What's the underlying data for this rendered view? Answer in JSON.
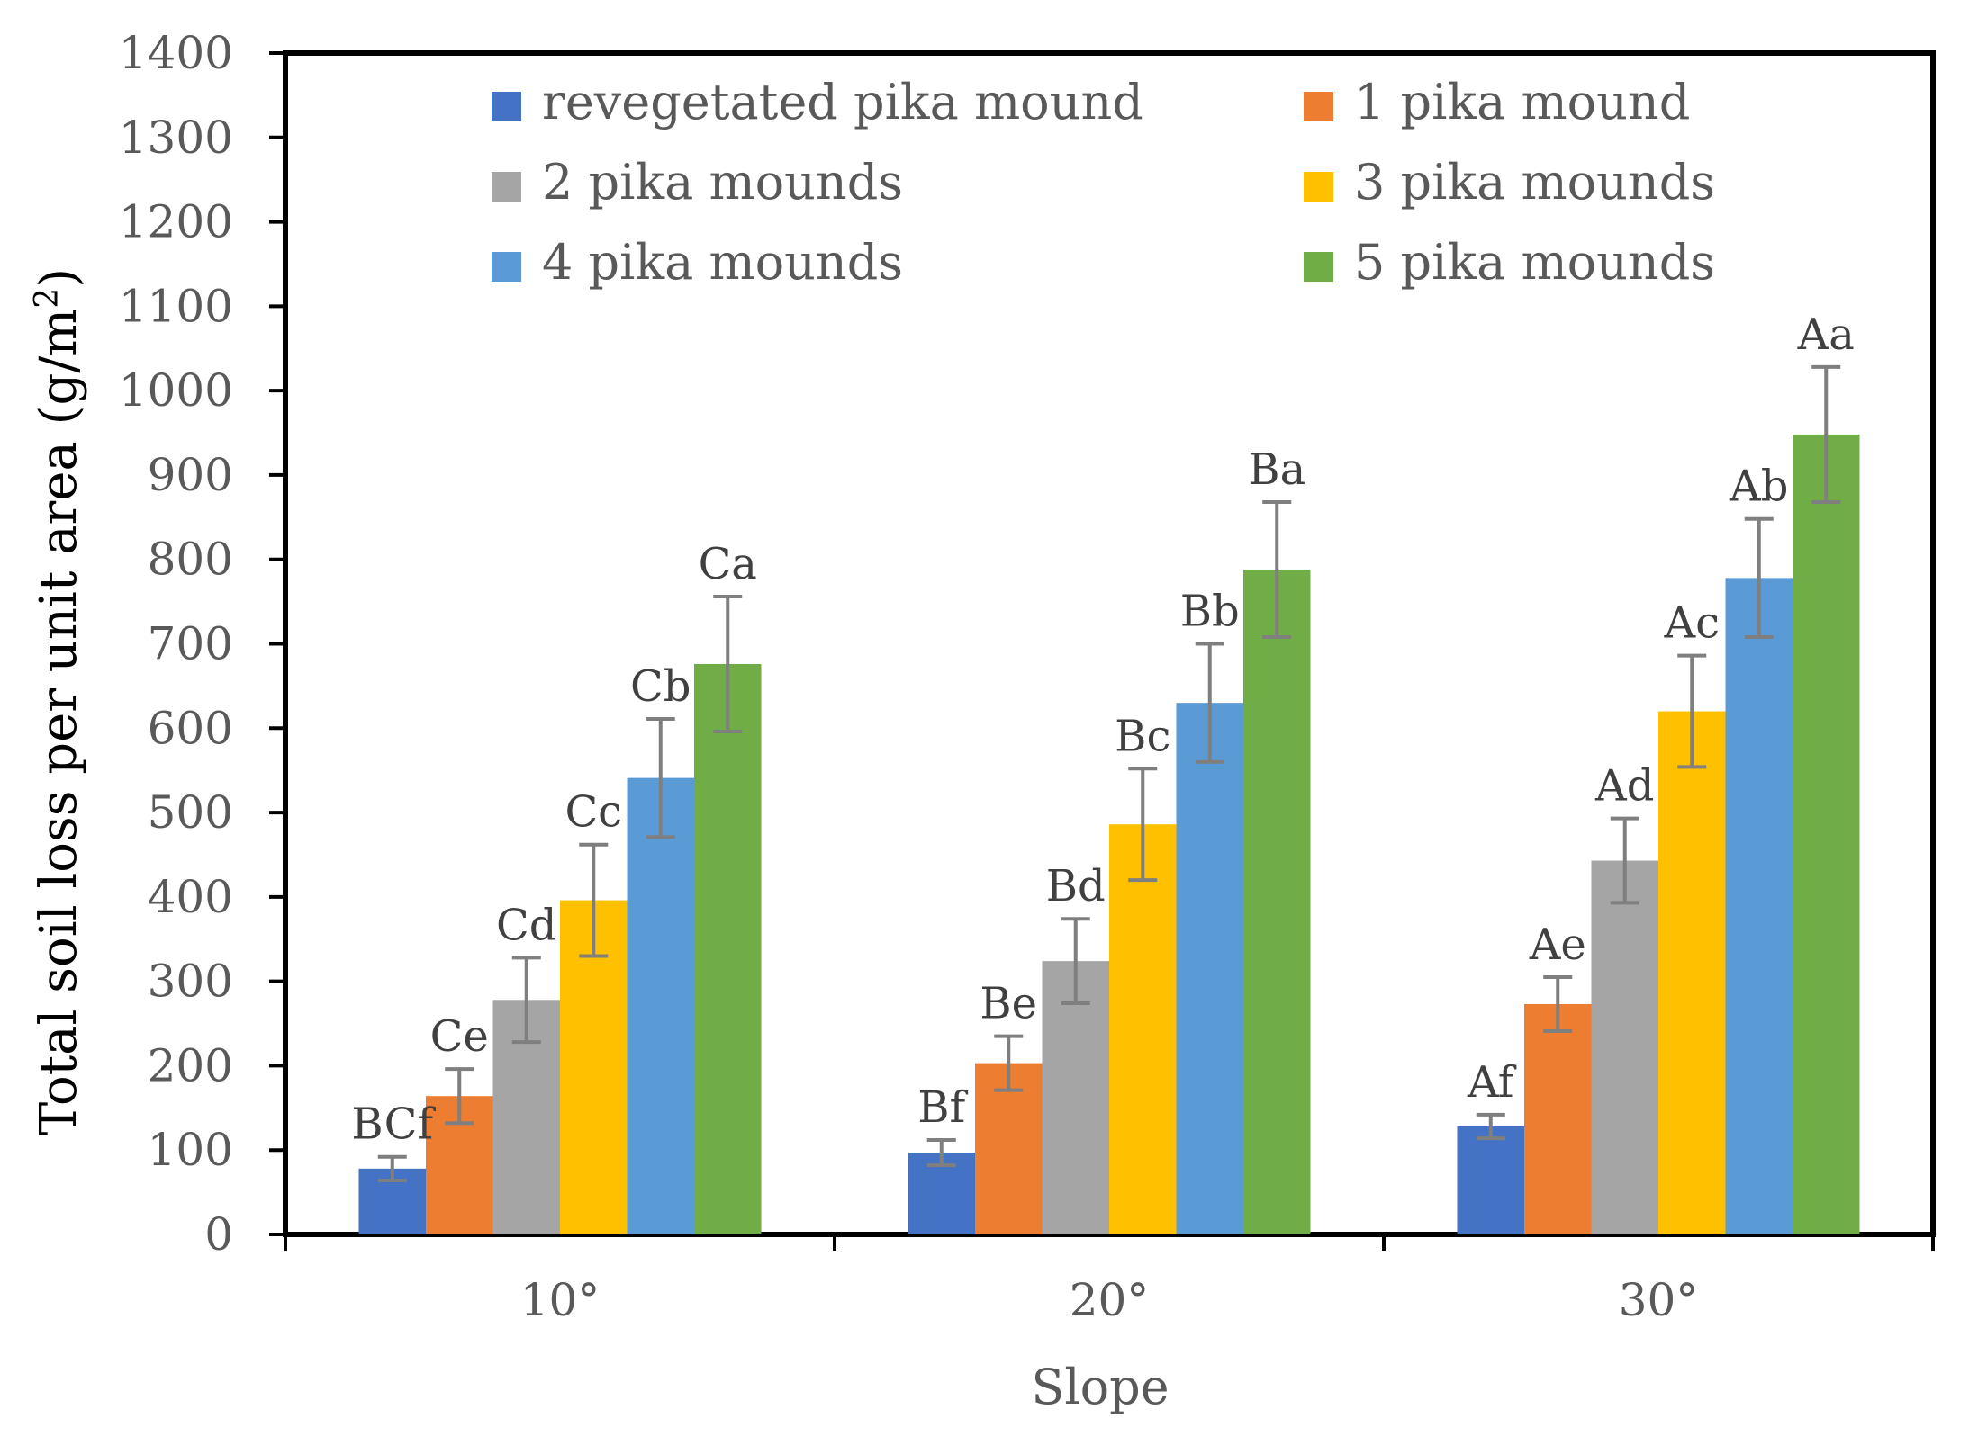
{
  "chart_data": {
    "type": "bar",
    "categories": [
      "10°",
      "20°",
      "30°"
    ],
    "xlabel": "Slope",
    "ylabel_main": "Total soil loss per unit area (g/m",
    "ylabel_sup": "2",
    "ylabel_close": ")",
    "ylim": [
      0,
      1400
    ],
    "yticks": [
      0,
      100,
      200,
      300,
      400,
      500,
      600,
      700,
      800,
      900,
      1000,
      1100,
      1200,
      1300,
      1400
    ],
    "grid": false,
    "legend_position": "top",
    "series": [
      {
        "name": "revegetated pika mound",
        "color": "#4472C4",
        "values": [
          78,
          97,
          128
        ],
        "errors": [
          14,
          15,
          14
        ],
        "labels": [
          "BCf",
          "Bf",
          "Af"
        ]
      },
      {
        "name": "1 pika mound",
        "color": "#ED7D31",
        "values": [
          164,
          203,
          273
        ],
        "errors": [
          32,
          32,
          32
        ],
        "labels": [
          "Ce",
          "Be",
          "Ae"
        ]
      },
      {
        "name": "2 pika mounds",
        "color": "#A5A5A5",
        "values": [
          278,
          324,
          443
        ],
        "errors": [
          50,
          50,
          50
        ],
        "labels": [
          "Cd",
          "Bd",
          "Ad"
        ]
      },
      {
        "name": "3 pika mounds",
        "color": "#FFC000",
        "values": [
          396,
          486,
          620
        ],
        "errors": [
          66,
          66,
          66
        ],
        "labels": [
          "Cc",
          "Bc",
          "Ac"
        ]
      },
      {
        "name": "4 pika mounds",
        "color": "#5B9BD5",
        "values": [
          541,
          630,
          778
        ],
        "errors": [
          70,
          70,
          70
        ],
        "labels": [
          "Cb",
          "Bb",
          "Ab"
        ]
      },
      {
        "name": "5 pika mounds",
        "color": "#70AD47",
        "values": [
          676,
          788,
          948
        ],
        "errors": [
          80,
          80,
          80
        ],
        "labels": [
          "Ca",
          "Ba",
          "Aa"
        ]
      }
    ]
  }
}
